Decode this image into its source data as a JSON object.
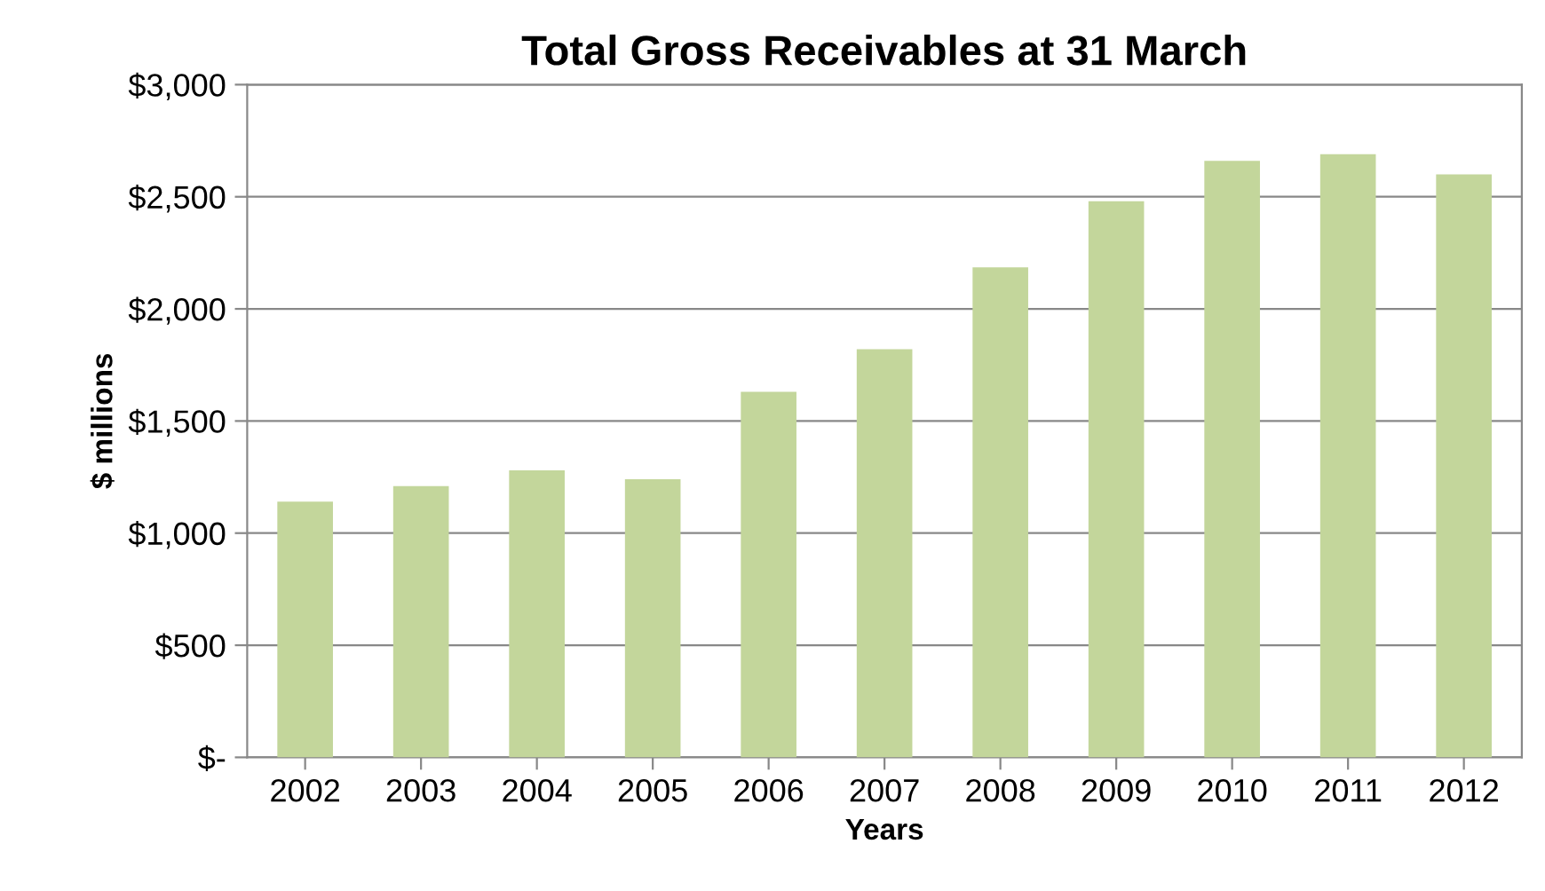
{
  "chart_data": {
    "type": "bar",
    "title": "Total Gross Receivables at 31 March",
    "xlabel": "Years",
    "ylabel": "$ millions",
    "categories": [
      "2002",
      "2003",
      "2004",
      "2005",
      "2006",
      "2007",
      "2008",
      "2009",
      "2010",
      "2011",
      "2012"
    ],
    "values": [
      1140,
      1210,
      1280,
      1240,
      1630,
      1820,
      2185,
      2480,
      2660,
      2690,
      2600
    ],
    "color": "#c3d69b",
    "ylim": [
      0,
      3000
    ],
    "yticks": [
      {
        "value": 0,
        "label": "$-"
      },
      {
        "value": 500,
        "label": "$500"
      },
      {
        "value": 1000,
        "label": "$1,000"
      },
      {
        "value": 1500,
        "label": "$1,500"
      },
      {
        "value": 2000,
        "label": "$2,000"
      },
      {
        "value": 2500,
        "label": "$2,500"
      },
      {
        "value": 3000,
        "label": "$3,000"
      }
    ],
    "grid": "y"
  }
}
